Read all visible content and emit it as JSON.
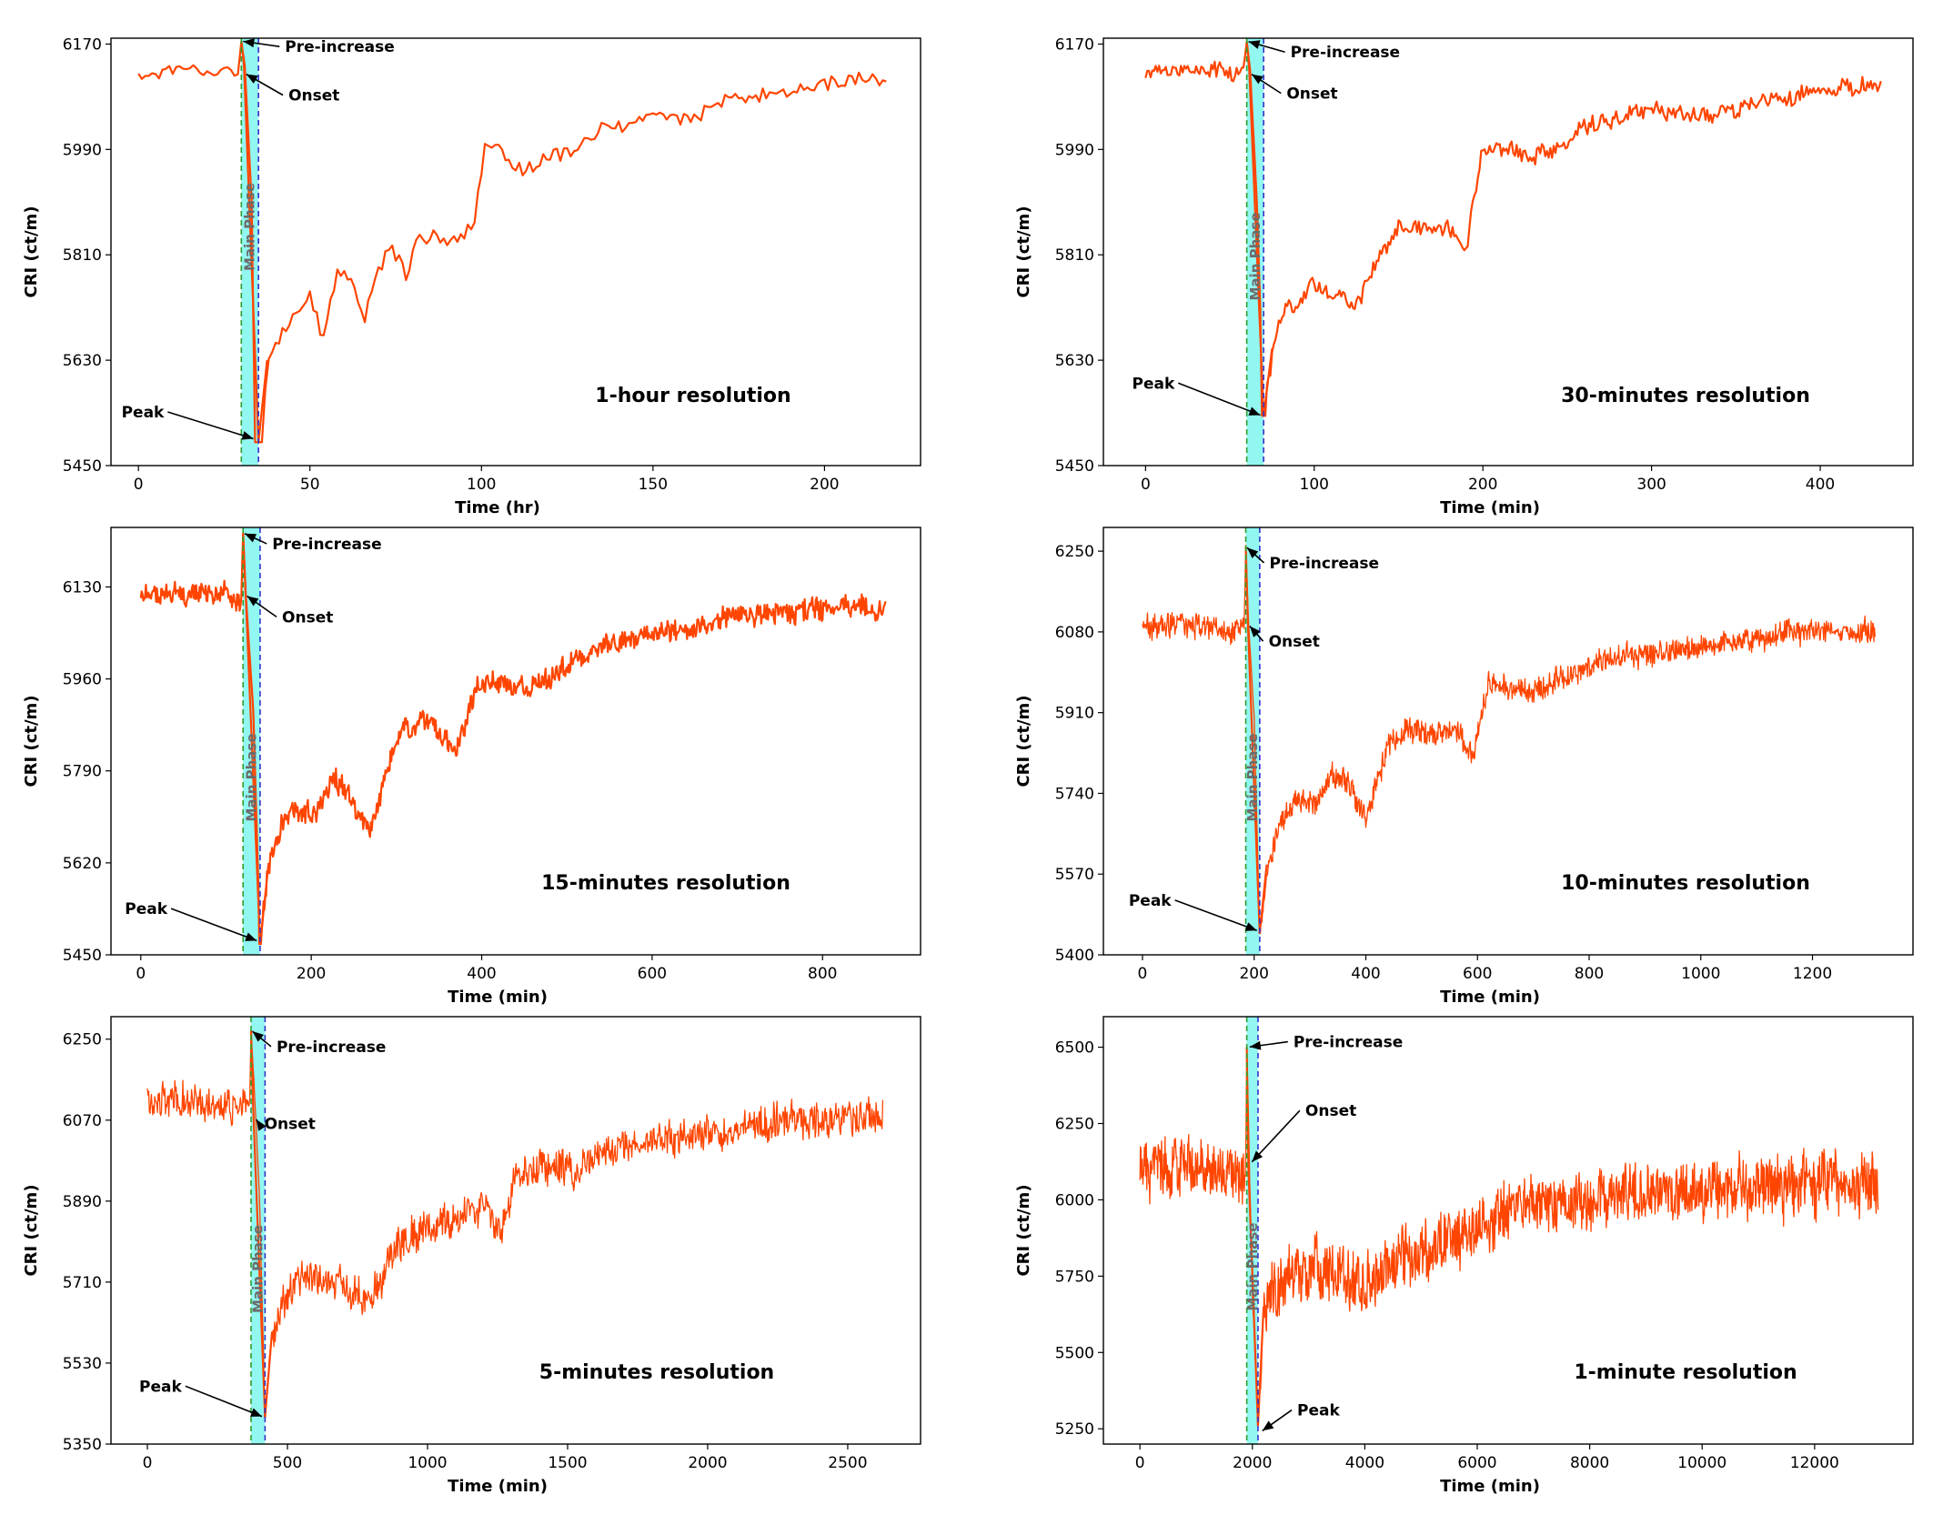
{
  "colors": {
    "series": "#ff4500",
    "phase_fill": "#7ff4ee",
    "onset_line": "#2ca02c",
    "peak_line": "#3333cc",
    "arrow": "#000000",
    "phase_text": "#6b6b6b"
  },
  "chart_data": [
    {
      "type": "line",
      "title": "1-hour resolution",
      "xlabel": "Time (hr)",
      "ylabel": "CRI (ct/m)",
      "xlim": [
        -8,
        228
      ],
      "ylim": [
        5450,
        6180
      ],
      "xticks": [
        0,
        50,
        100,
        150,
        200
      ],
      "yticks": [
        5450,
        5630,
        5810,
        5990,
        6170
      ],
      "n_points": 219,
      "noise": 18,
      "onset_x": 30,
      "peak_x": 35,
      "pre_level": 6120,
      "pre_increase_value": 6175,
      "onset_value": 6135,
      "peak_value": 5490,
      "post_value": 5630,
      "phase_text": "Main Phase",
      "annotations": [
        {
          "label": "Pre-increase",
          "x": 30,
          "y": 6175
        },
        {
          "label": "Onset",
          "x": 31,
          "y": 6120
        },
        {
          "label": "Peak",
          "x": 34,
          "y": 5495
        }
      ],
      "path": [
        [
          0,
          6115
        ],
        [
          10,
          6130
        ],
        [
          20,
          6130
        ],
        [
          29,
          6120
        ],
        [
          30,
          6175
        ],
        [
          31,
          6135
        ],
        [
          33,
          5900
        ],
        [
          35,
          5490
        ],
        [
          38,
          5620
        ],
        [
          42,
          5680
        ],
        [
          46,
          5720
        ],
        [
          50,
          5740
        ],
        [
          54,
          5660
        ],
        [
          58,
          5790
        ],
        [
          62,
          5760
        ],
        [
          66,
          5710
        ],
        [
          70,
          5790
        ],
        [
          74,
          5820
        ],
        [
          78,
          5780
        ],
        [
          82,
          5850
        ],
        [
          86,
          5840
        ],
        [
          90,
          5830
        ],
        [
          94,
          5850
        ],
        [
          98,
          5860
        ],
        [
          101,
          5990
        ],
        [
          106,
          5980
        ],
        [
          112,
          5950
        ],
        [
          118,
          5970
        ],
        [
          126,
          5990
        ],
        [
          134,
          6020
        ],
        [
          142,
          6030
        ],
        [
          150,
          6050
        ],
        [
          160,
          6040
        ],
        [
          170,
          6070
        ],
        [
          180,
          6080
        ],
        [
          190,
          6090
        ],
        [
          200,
          6100
        ],
        [
          210,
          6110
        ],
        [
          218,
          6105
        ]
      ]
    },
    {
      "type": "line",
      "title": "30-minutes resolution",
      "xlabel": "Time (min)",
      "ylabel": "CRI (ct/m)",
      "xlim": [
        -25,
        455
      ],
      "ylim": [
        5450,
        6180
      ],
      "xticks": [
        0,
        100,
        200,
        300,
        400
      ],
      "yticks": [
        5450,
        5630,
        5810,
        5990,
        6170
      ],
      "n_points": 437,
      "noise": 22,
      "onset_x": 60,
      "peak_x": 70,
      "pre_level": 6125,
      "pre_increase_value": 6175,
      "onset_value": 6125,
      "peak_value": 5535,
      "post_value": 5650,
      "phase_text": "Main Phase",
      "annotations": [
        {
          "label": "Pre-increase",
          "x": 60,
          "y": 6175
        },
        {
          "label": "Onset",
          "x": 62,
          "y": 6120
        },
        {
          "label": "Peak",
          "x": 69,
          "y": 5535
        }
      ],
      "path": [
        [
          0,
          6125
        ],
        [
          20,
          6130
        ],
        [
          40,
          6125
        ],
        [
          58,
          6125
        ],
        [
          60,
          6175
        ],
        [
          62,
          6125
        ],
        [
          66,
          5900
        ],
        [
          70,
          5535
        ],
        [
          76,
          5660
        ],
        [
          85,
          5720
        ],
        [
          100,
          5760
        ],
        [
          115,
          5740
        ],
        [
          125,
          5720
        ],
        [
          135,
          5780
        ],
        [
          150,
          5860
        ],
        [
          165,
          5850
        ],
        [
          180,
          5860
        ],
        [
          190,
          5830
        ],
        [
          200,
          5990
        ],
        [
          215,
          5990
        ],
        [
          230,
          5980
        ],
        [
          245,
          5990
        ],
        [
          260,
          6030
        ],
        [
          280,
          6040
        ],
        [
          300,
          6060
        ],
        [
          320,
          6050
        ],
        [
          340,
          6050
        ],
        [
          360,
          6070
        ],
        [
          380,
          6080
        ],
        [
          400,
          6090
        ],
        [
          420,
          6100
        ],
        [
          436,
          6095
        ]
      ]
    },
    {
      "type": "line",
      "title": "15-minutes resolution",
      "xlabel": "Time (min)",
      "ylabel": "CRI (ct/m)",
      "xlim": [
        -35,
        915
      ],
      "ylim": [
        5450,
        6240
      ],
      "xticks": [
        0,
        200,
        400,
        600,
        800
      ],
      "yticks": [
        5450,
        5620,
        5790,
        5960,
        6130
      ],
      "n_points": 875,
      "noise": 28,
      "onset_x": 120,
      "peak_x": 140,
      "pre_level": 6115,
      "pre_increase_value": 6230,
      "onset_value": 6120,
      "peak_value": 5470,
      "post_value": 5620,
      "phase_text": "Main Phase",
      "annotations": [
        {
          "label": "Pre-increase",
          "x": 120,
          "y": 6230
        },
        {
          "label": "Onset",
          "x": 123,
          "y": 6115
        },
        {
          "label": "Peak",
          "x": 138,
          "y": 5475
        }
      ],
      "path": [
        [
          0,
          6115
        ],
        [
          40,
          6120
        ],
        [
          80,
          6115
        ],
        [
          118,
          6110
        ],
        [
          120,
          6230
        ],
        [
          123,
          6120
        ],
        [
          132,
          5900
        ],
        [
          140,
          5470
        ],
        [
          150,
          5610
        ],
        [
          165,
          5690
        ],
        [
          185,
          5720
        ],
        [
          205,
          5700
        ],
        [
          225,
          5780
        ],
        [
          245,
          5740
        ],
        [
          270,
          5680
        ],
        [
          290,
          5800
        ],
        [
          310,
          5870
        ],
        [
          330,
          5880
        ],
        [
          350,
          5860
        ],
        [
          370,
          5830
        ],
        [
          395,
          5950
        ],
        [
          420,
          5960
        ],
        [
          450,
          5940
        ],
        [
          480,
          5960
        ],
        [
          520,
          6010
        ],
        [
          560,
          6030
        ],
        [
          600,
          6040
        ],
        [
          640,
          6050
        ],
        [
          680,
          6070
        ],
        [
          720,
          6080
        ],
        [
          760,
          6085
        ],
        [
          800,
          6090
        ],
        [
          840,
          6095
        ],
        [
          874,
          6090
        ]
      ]
    },
    {
      "type": "line",
      "title": "10-minutes resolution",
      "xlabel": "Time (min)",
      "ylabel": "CRI (ct/m)",
      "xlim": [
        -70,
        1380
      ],
      "ylim": [
        5400,
        6300
      ],
      "xticks": [
        0,
        200,
        400,
        600,
        800,
        1000,
        1200
      ],
      "yticks": [
        5400,
        5570,
        5740,
        5910,
        6080,
        6250
      ],
      "n_points": 1313,
      "noise": 34,
      "onset_x": 185,
      "peak_x": 210,
      "pre_level": 6090,
      "pre_increase_value": 6260,
      "onset_value": 6100,
      "peak_value": 5445,
      "post_value": 5590,
      "phase_text": "Main Phase",
      "annotations": [
        {
          "label": "Pre-increase",
          "x": 185,
          "y": 6260
        },
        {
          "label": "Onset",
          "x": 190,
          "y": 6095
        },
        {
          "label": "Peak",
          "x": 208,
          "y": 5450
        }
      ],
      "path": [
        [
          0,
          6090
        ],
        [
          60,
          6095
        ],
        [
          120,
          6090
        ],
        [
          182,
          6085
        ],
        [
          185,
          6260
        ],
        [
          190,
          6100
        ],
        [
          200,
          5900
        ],
        [
          210,
          5445
        ],
        [
          225,
          5590
        ],
        [
          250,
          5690
        ],
        [
          280,
          5730
        ],
        [
          310,
          5720
        ],
        [
          340,
          5780
        ],
        [
          370,
          5760
        ],
        [
          400,
          5690
        ],
        [
          440,
          5840
        ],
        [
          480,
          5880
        ],
        [
          520,
          5860
        ],
        [
          560,
          5880
        ],
        [
          590,
          5820
        ],
        [
          620,
          5970
        ],
        [
          660,
          5960
        ],
        [
          700,
          5950
        ],
        [
          760,
          5990
        ],
        [
          820,
          6020
        ],
        [
          880,
          6030
        ],
        [
          940,
          6040
        ],
        [
          1000,
          6050
        ],
        [
          1060,
          6060
        ],
        [
          1120,
          6070
        ],
        [
          1180,
          6080
        ],
        [
          1240,
          6085
        ],
        [
          1312,
          6080
        ]
      ]
    },
    {
      "type": "line",
      "title": "5-minutes resolution",
      "xlabel": "Time (min)",
      "ylabel": "CRI (ct/m)",
      "xlim": [
        -130,
        2760
      ],
      "ylim": [
        5350,
        6300
      ],
      "xticks": [
        0,
        500,
        1000,
        1500,
        2000,
        2500
      ],
      "yticks": [
        5350,
        5530,
        5710,
        5890,
        6070,
        6250
      ],
      "n_points": 1100,
      "noise": 55,
      "onset_x": 370,
      "peak_x": 420,
      "pre_level": 6110,
      "pre_increase_value": 6270,
      "onset_value": 6100,
      "peak_value": 5410,
      "post_value": 5600,
      "phase_text": "Main Phase",
      "annotations": [
        {
          "label": "Pre-increase",
          "x": 370,
          "y": 6270
        },
        {
          "label": "Onset",
          "x": 385,
          "y": 6075
        },
        {
          "label": "Peak",
          "x": 415,
          "y": 5410
        }
      ],
      "path": [
        [
          0,
          6110
        ],
        [
          100,
          6120
        ],
        [
          250,
          6110
        ],
        [
          365,
          6100
        ],
        [
          370,
          6270
        ],
        [
          385,
          6100
        ],
        [
          400,
          5900
        ],
        [
          420,
          5410
        ],
        [
          445,
          5600
        ],
        [
          500,
          5690
        ],
        [
          560,
          5730
        ],
        [
          620,
          5720
        ],
        [
          680,
          5700
        ],
        [
          740,
          5680
        ],
        [
          800,
          5660
        ],
        [
          880,
          5780
        ],
        [
          960,
          5820
        ],
        [
          1040,
          5840
        ],
        [
          1120,
          5850
        ],
        [
          1200,
          5880
        ],
        [
          1260,
          5820
        ],
        [
          1320,
          5960
        ],
        [
          1400,
          5960
        ],
        [
          1500,
          5960
        ],
        [
          1600,
          5990
        ],
        [
          1700,
          6010
        ],
        [
          1800,
          6020
        ],
        [
          1900,
          6030
        ],
        [
          2000,
          6040
        ],
        [
          2100,
          6050
        ],
        [
          2200,
          6060
        ],
        [
          2300,
          6070
        ],
        [
          2400,
          6070
        ],
        [
          2500,
          6075
        ],
        [
          2625,
          6080
        ]
      ]
    },
    {
      "type": "line",
      "title": "1-minute resolution",
      "xlabel": "Time (min)",
      "ylabel": "CRI (ct/m)",
      "xlim": [
        -650,
        13750
      ],
      "ylim": [
        5200,
        6600
      ],
      "xticks": [
        0,
        2000,
        4000,
        6000,
        8000,
        10000,
        12000
      ],
      "yticks": [
        5250,
        5500,
        5750,
        6000,
        6250,
        6500
      ],
      "n_points": 1500,
      "noise": 130,
      "onset_x": 1900,
      "peak_x": 2100,
      "pre_level": 6100,
      "pre_increase_value": 6500,
      "onset_value": 6100,
      "peak_value": 5260,
      "post_value": 5650,
      "phase_text": "Main Phase",
      "annotations": [
        {
          "label": "Pre-increase",
          "x": 1920,
          "y": 6500
        },
        {
          "label": "Onset",
          "x": 1970,
          "y": 6120
        },
        {
          "label": "Peak",
          "x": 2150,
          "y": 5240
        }
      ],
      "path": [
        [
          0,
          6100
        ],
        [
          500,
          6110
        ],
        [
          1200,
          6100
        ],
        [
          1880,
          6090
        ],
        [
          1900,
          6500
        ],
        [
          1950,
          6100
        ],
        [
          2000,
          5700
        ],
        [
          2100,
          5260
        ],
        [
          2200,
          5650
        ],
        [
          2600,
          5740
        ],
        [
          3000,
          5780
        ],
        [
          3500,
          5760
        ],
        [
          4000,
          5720
        ],
        [
          4500,
          5800
        ],
        [
          5000,
          5830
        ],
        [
          5500,
          5850
        ],
        [
          6000,
          5900
        ],
        [
          6500,
          5960
        ],
        [
          7000,
          5980
        ],
        [
          8000,
          6000
        ],
        [
          9000,
          6020
        ],
        [
          10000,
          6030
        ],
        [
          11000,
          6040
        ],
        [
          12000,
          6060
        ],
        [
          13130,
          6060
        ]
      ]
    }
  ]
}
